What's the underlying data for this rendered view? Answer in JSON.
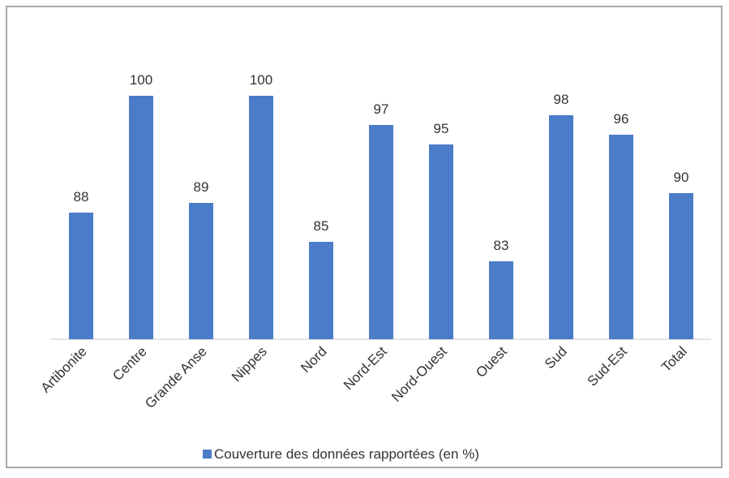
{
  "chart_data": {
    "type": "bar",
    "categories": [
      "Artibonite",
      "Centre",
      "Grande Anse",
      "Nippes",
      "Nord",
      "Nord-Est",
      "Nord-Ouest",
      "Ouest",
      "Sud",
      "Sud-Est",
      "Total"
    ],
    "series": [
      {
        "name": "Couverture des données rapportées (en %)",
        "color": "#4a7cc7",
        "values": [
          88,
          100,
          89,
          100,
          85,
          97,
          95,
          83,
          98,
          96,
          90
        ]
      }
    ],
    "ylim": [
      75,
      105
    ],
    "legend": "bottom"
  }
}
